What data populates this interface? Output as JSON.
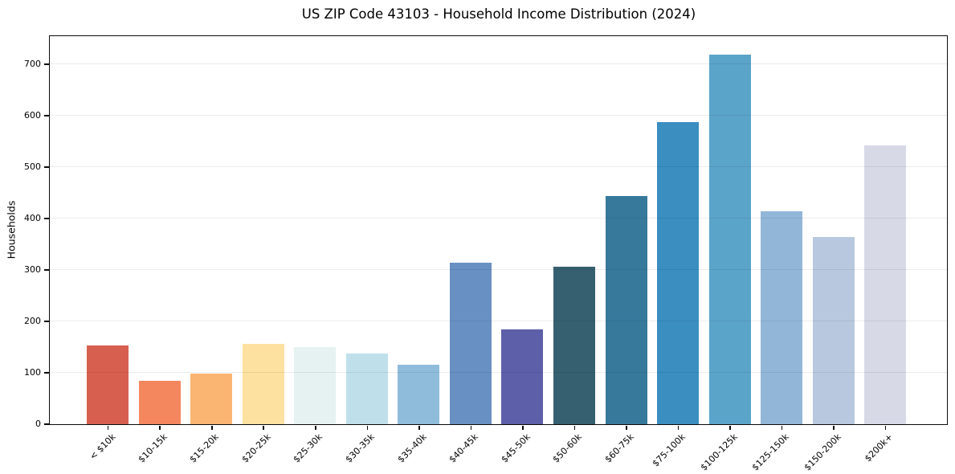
{
  "chart_data": {
    "type": "bar",
    "title": "US ZIP Code 43103 - Household Income Distribution (2024)",
    "xlabel": "",
    "ylabel": "Households",
    "ylim": [
      0,
      755
    ],
    "yticks": [
      0,
      100,
      200,
      300,
      400,
      500,
      600,
      700
    ],
    "grid": true,
    "legend_position": "none",
    "categories": [
      "< $10k",
      "$10-15k",
      "$15-20k",
      "$20-25k",
      "$25-30k",
      "$30-35k",
      "$35-40k",
      "$40-45k",
      "$45-50k",
      "$50-60k",
      "$60-75k",
      "$75-100k",
      "$100-125k",
      "$125-150k",
      "$150-200k",
      "$200k+"
    ],
    "values": [
      152,
      84,
      98,
      155,
      149,
      137,
      115,
      314,
      184,
      306,
      443,
      587,
      719,
      414,
      364,
      542
    ],
    "bar_colors": [
      "#d65f50",
      "#f4875e",
      "#fab572",
      "#fde1a0",
      "#e6f2f1",
      "#bfe0eb",
      "#8fbcdb",
      "#6890c3",
      "#5d5fa9",
      "#36606f",
      "#37799b",
      "#3a8ec0",
      "#5ba4c9",
      "#92b6d8",
      "#b8c8de",
      "#d7d9e7"
    ]
  }
}
